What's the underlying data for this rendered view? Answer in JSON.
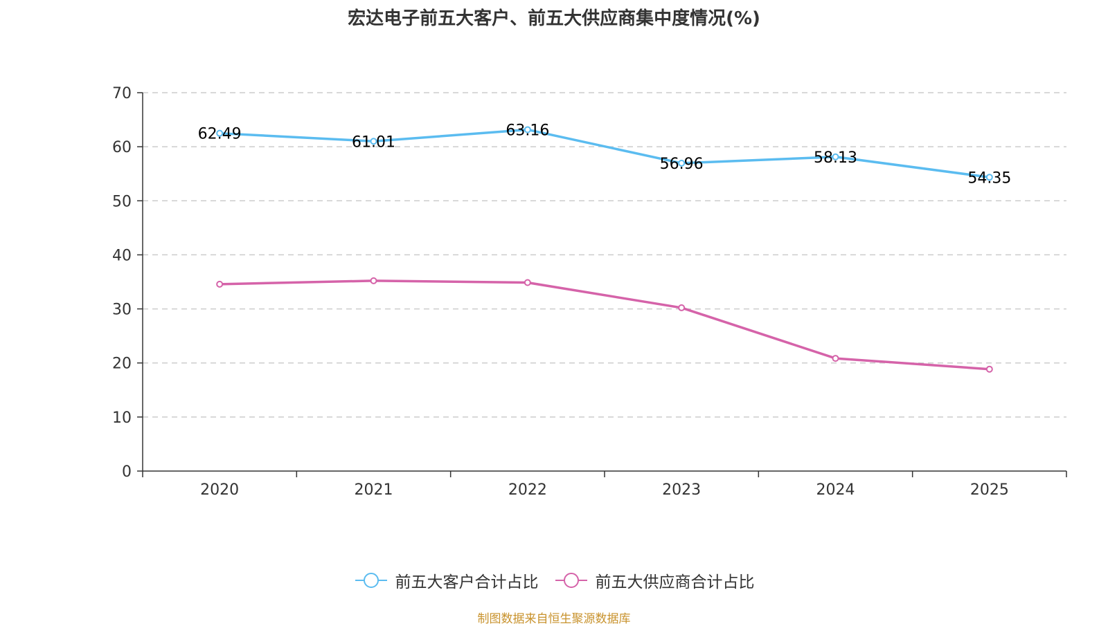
{
  "chart_data": {
    "type": "line",
    "title": "宏达电子前五大客户、前五大供应商集中度情况(%)",
    "xlabel": "",
    "ylabel": "",
    "categories": [
      "2020",
      "2021",
      "2022",
      "2023",
      "2024",
      "2025"
    ],
    "ylim": [
      0,
      70
    ],
    "yticks": [
      0,
      10,
      20,
      30,
      40,
      50,
      60,
      70
    ],
    "grid": true,
    "legend_position": "bottom-center",
    "series": [
      {
        "name": "前五大客户合计占比",
        "color": "#5bbcf0",
        "values": [
          62.49,
          61.01,
          63.16,
          56.96,
          58.13,
          54.35
        ],
        "labels": [
          "62.49",
          "61.01",
          "63.16",
          "56.96",
          "58.13",
          "54.35"
        ],
        "show_labels": true
      },
      {
        "name": "前五大供应商合计占比",
        "color": "#d563a9",
        "values": [
          34.57,
          35.21,
          34.87,
          30.21,
          20.85,
          18.85
        ],
        "show_labels": false
      }
    ]
  },
  "source_note": "制图数据来自恒生聚源数据库"
}
